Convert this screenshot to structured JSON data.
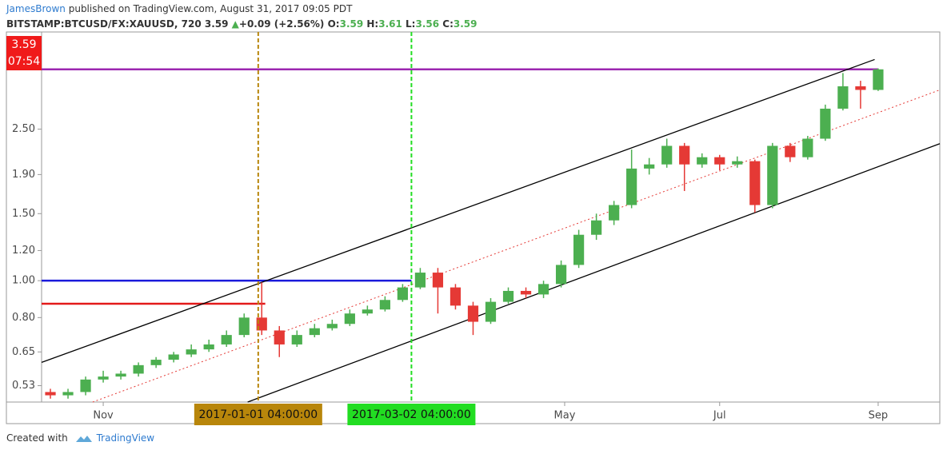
{
  "header": {
    "author": "JamesBrown",
    "published": "published on TradingView.com, August 31, 2017 09:05 PDT",
    "symbol": "BITSTAMP:BTCUSD/FX:XAUUSD, 720",
    "last": "3.59",
    "arrow": "▲",
    "change": "+0.09 (+2.56%)",
    "o_label": "O:",
    "o": "3.59",
    "h_label": "H:",
    "h": "3.61",
    "l_label": "L:",
    "l": "3.56",
    "c_label": "C:",
    "c": "3.59",
    "price_tag": "3.59",
    "countdown": "07:54"
  },
  "footer": {
    "created": "Created with",
    "brand": "TradingView"
  },
  "chart_data": {
    "type": "candlestick",
    "log_scale": true,
    "up_color": "#4caf50",
    "down_color": "#e53935",
    "categories": [
      null,
      null,
      null,
      null,
      null,
      null,
      null,
      null,
      null,
      null,
      null,
      null,
      null,
      null,
      null,
      null,
      null,
      null,
      null,
      null,
      null,
      null,
      null,
      null,
      null,
      null,
      null,
      null,
      null,
      null,
      null,
      null,
      null,
      null,
      null,
      null,
      null,
      null,
      null,
      null,
      null,
      null,
      null,
      null,
      null,
      null,
      null,
      null
    ],
    "open": [
      0.51,
      0.5,
      0.51,
      0.55,
      0.56,
      0.57,
      0.6,
      0.62,
      0.64,
      0.66,
      0.68,
      0.72,
      0.8,
      0.74,
      0.68,
      0.72,
      0.75,
      0.77,
      0.82,
      0.84,
      0.89,
      0.96,
      1.05,
      0.96,
      0.86,
      0.78,
      0.88,
      0.94,
      0.92,
      0.98,
      1.1,
      1.32,
      1.44,
      1.58,
      1.97,
      2.02,
      2.26,
      2.02,
      2.11,
      2.02,
      2.06,
      1.58,
      2.26,
      2.11,
      2.36,
      2.83,
      3.24,
      3.17
    ],
    "high": [
      0.52,
      0.52,
      0.56,
      0.58,
      0.58,
      0.61,
      0.63,
      0.65,
      0.68,
      0.7,
      0.74,
      0.82,
      0.99,
      0.76,
      0.74,
      0.77,
      0.79,
      0.84,
      0.86,
      0.91,
      0.98,
      1.08,
      1.08,
      0.98,
      0.88,
      0.9,
      0.96,
      0.96,
      1.0,
      1.13,
      1.36,
      1.5,
      1.62,
      2.21,
      2.1,
      2.36,
      2.3,
      2.16,
      2.14,
      2.12,
      2.08,
      2.3,
      2.3,
      2.4,
      2.9,
      3.51,
      3.35,
      3.61
    ],
    "low": [
      0.49,
      0.49,
      0.5,
      0.54,
      0.55,
      0.56,
      0.59,
      0.61,
      0.63,
      0.65,
      0.67,
      0.71,
      0.72,
      0.63,
      0.67,
      0.71,
      0.74,
      0.76,
      0.81,
      0.83,
      0.88,
      0.95,
      0.82,
      0.84,
      0.72,
      0.77,
      0.87,
      0.9,
      0.9,
      0.96,
      1.08,
      1.28,
      1.4,
      1.55,
      1.9,
      1.98,
      1.72,
      1.98,
      1.95,
      1.98,
      1.51,
      1.55,
      2.05,
      2.08,
      2.33,
      2.8,
      2.83,
      3.15
    ],
    "close": [
      0.5,
      0.51,
      0.55,
      0.56,
      0.57,
      0.6,
      0.62,
      0.64,
      0.66,
      0.68,
      0.72,
      0.8,
      0.74,
      0.68,
      0.72,
      0.75,
      0.77,
      0.82,
      0.84,
      0.89,
      0.96,
      1.05,
      0.96,
      0.86,
      0.78,
      0.88,
      0.94,
      0.92,
      0.98,
      1.1,
      1.32,
      1.44,
      1.58,
      1.97,
      2.02,
      2.26,
      2.02,
      2.11,
      2.02,
      2.06,
      1.58,
      2.26,
      2.11,
      2.36,
      2.83,
      3.24,
      3.17,
      3.59
    ],
    "xlim": [
      -0.5,
      50.5
    ],
    "ylim": [
      0.48,
      4.5
    ],
    "yticks": [
      0.53,
      0.65,
      {
        "value": 0.8,
        "label": "0.80"
      },
      {
        "value": 1,
        "label": "1.00"
      },
      {
        "value": 1.2,
        "label": "1.20"
      },
      {
        "value": 1.5,
        "label": "1.50"
      },
      {
        "value": 1.9,
        "label": "1.90"
      },
      {
        "value": 2.5,
        "label": "2.50"
      }
    ],
    "xticks": [
      {
        "value": 3,
        "label": "Nov"
      },
      {
        "value": 29.2,
        "label": "May"
      },
      {
        "value": 38,
        "label": "Jul"
      },
      {
        "value": 47,
        "label": "Sep"
      }
    ],
    "lines": [
      {
        "color": "#000000",
        "dash": false,
        "points": [
          [
            -0.5,
            0.61
          ],
          [
            46.8,
            3.81
          ]
        ]
      },
      {
        "color": "#000000",
        "dash": false,
        "points": [
          [
            11.2,
            0.48
          ],
          [
            50.5,
            2.29
          ]
        ]
      },
      {
        "color": "#e53935",
        "dash": true,
        "points": [
          [
            2.4,
            0.48
          ],
          [
            50.5,
            3.17
          ]
        ]
      }
    ],
    "hlines": [
      {
        "value": 3.59,
        "color": "#9c27b0",
        "from": -0.5,
        "to": 47
      },
      {
        "value": 1.0,
        "color": "#1a1adb",
        "from": -0.5,
        "to": 20.5
      },
      {
        "value": 0.87,
        "color": "#e31a1a",
        "from": -0.5,
        "to": 12.2
      }
    ],
    "vlines": [
      {
        "x": 11.8,
        "label": "2017-01-01 04:00:00",
        "color": "#b8860b"
      },
      {
        "x": 20.5,
        "label": "2017-03-02 04:00:00",
        "color": "#22dd22"
      }
    ]
  }
}
